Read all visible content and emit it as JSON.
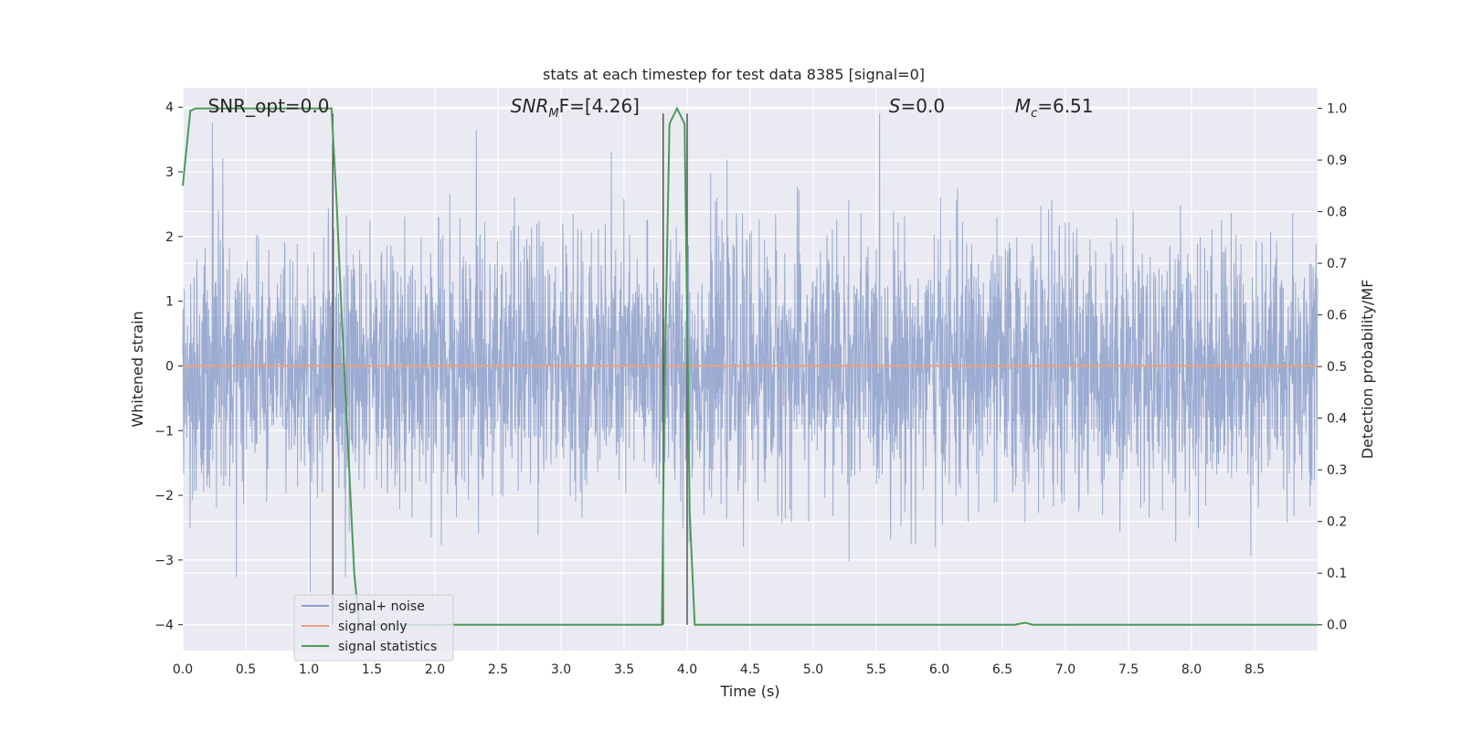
{
  "chart_data": {
    "type": "line",
    "title": "stats at each timestep for test data 8385 [signal=0]",
    "xlabel": "Time (s)",
    "ylabel_left": "Whitened strain",
    "ylabel_right": "Detection probability/MF",
    "xlim": [
      0.0,
      9.0
    ],
    "ylim_left": [
      -4.4,
      4.3
    ],
    "ylim_right": [
      -0.05,
      1.04
    ],
    "x_ticks": [
      "0.0",
      "0.5",
      "1.0",
      "1.5",
      "2.0",
      "2.5",
      "3.0",
      "3.5",
      "4.0",
      "4.5",
      "5.0",
      "5.5",
      "6.0",
      "6.5",
      "7.0",
      "7.5",
      "8.0",
      "8.5"
    ],
    "y_left_ticks": [
      "4",
      "3",
      "2",
      "1",
      "0",
      "−1",
      "−2",
      "−3",
      "−4"
    ],
    "y_right_ticks": [
      "1.0",
      "0.9",
      "0.8",
      "0.7",
      "0.6",
      "0.5",
      "0.4",
      "0.3",
      "0.2",
      "0.1",
      "0.0"
    ],
    "grid": true,
    "legend_position": "lower-left",
    "annotations": [
      {
        "x": 0.2,
        "text": "SNR_opt=0.0",
        "italic_prefix": "",
        "sub": "",
        "rest": ""
      },
      {
        "x": 2.6,
        "text": "",
        "italic_prefix": "SNR",
        "sub": "M",
        "rest": "F=[4.26]"
      },
      {
        "x": 5.6,
        "text": "",
        "italic_prefix": "S",
        "sub": "",
        "rest": "=0.0"
      },
      {
        "x": 6.6,
        "text": "",
        "italic_prefix": "M",
        "sub": "c",
        "rest": "=6.51"
      }
    ],
    "series": [
      {
        "name": "signal+ noise",
        "color": "#8da0cb",
        "type": "noise",
        "std": 1.0,
        "peak": 3.9,
        "x_range": [
          0.0,
          9.0
        ]
      },
      {
        "name": "signal only",
        "color": "#e8a180",
        "x": [
          0.0,
          9.0
        ],
        "y": [
          0.0,
          0.0
        ]
      },
      {
        "name": "signal statistics",
        "color": "#4c9a5a",
        "axis": "right",
        "x": [
          0.0,
          0.06,
          0.1,
          0.2,
          1.0,
          1.18,
          1.22,
          1.26,
          1.32,
          1.36,
          1.4,
          2.0,
          3.0,
          3.8,
          3.82,
          3.86,
          3.92,
          3.98,
          4.02,
          4.06,
          4.1,
          5.0,
          6.0,
          6.6,
          6.68,
          6.74,
          7.0,
          8.0,
          9.0
        ],
        "y": [
          0.85,
          0.995,
          1.0,
          1.0,
          1.0,
          1.0,
          0.82,
          0.6,
          0.3,
          0.1,
          0.0,
          0.0,
          0.0,
          0.0,
          0.45,
          0.97,
          1.0,
          0.97,
          0.22,
          0.0,
          0.0,
          0.0,
          0.0,
          0.0,
          0.004,
          0.0,
          0.0,
          0.0,
          0.0
        ]
      }
    ],
    "vertical_lines": [
      1.19,
      3.81,
      4.0
    ]
  }
}
